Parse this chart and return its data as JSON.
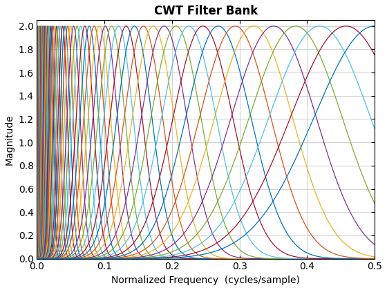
{
  "title": "CWT Filter Bank",
  "xlabel": "Normalized Frequency  (cycles/sample)",
  "ylabel": "Magnitude",
  "xlim": [
    0,
    0.5
  ],
  "ylim": [
    0,
    2.05
  ],
  "yticks": [
    0,
    0.2,
    0.4,
    0.6,
    0.8,
    1.0,
    1.2,
    1.4,
    1.6,
    1.8,
    2.0
  ],
  "xticks": [
    0,
    0.1,
    0.2,
    0.3,
    0.4,
    0.5
  ],
  "n_filters": 71,
  "peak_magnitude": 2.0,
  "Q": 0.18,
  "f_min": 0.001,
  "f_max": 0.5,
  "colors": [
    "#0072BD",
    "#D95319",
    "#EDB120",
    "#7E2F8E",
    "#77AC30",
    "#4DBEEE",
    "#A2142F"
  ],
  "figsize": [
    5.6,
    4.2
  ],
  "dpi": 100,
  "background_color": "#ffffff",
  "grid_color": "#d3d3d3",
  "linewidth": 0.9
}
